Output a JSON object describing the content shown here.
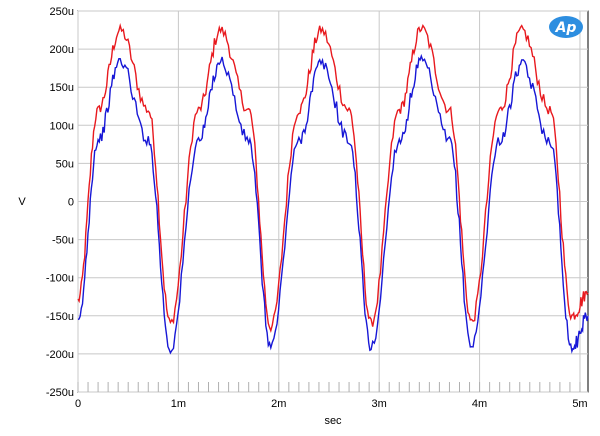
{
  "chart_data": {
    "type": "line",
    "title": "",
    "xlabel": "sec",
    "ylabel": "V",
    "xlim": [
      0,
      0.00508
    ],
    "ylim": [
      -0.00025,
      0.00025
    ],
    "grid": true,
    "x_ticks": [
      {
        "value": 0,
        "label": "0"
      },
      {
        "value": 0.001,
        "label": "1m"
      },
      {
        "value": 0.002,
        "label": "2m"
      },
      {
        "value": 0.003,
        "label": "3m"
      },
      {
        "value": 0.004,
        "label": "4m"
      },
      {
        "value": 0.005,
        "label": "5m"
      }
    ],
    "y_ticks": [
      {
        "value": 0.00025,
        "label": "250u"
      },
      {
        "value": 0.0002,
        "label": "200u"
      },
      {
        "value": 0.00015,
        "label": "150u"
      },
      {
        "value": 0.0001,
        "label": "100u"
      },
      {
        "value": 5e-05,
        "label": "50u"
      },
      {
        "value": 0,
        "label": "0"
      },
      {
        "value": -5e-05,
        "label": "-50u"
      },
      {
        "value": -0.0001,
        "label": "-100u"
      },
      {
        "value": -0.00015,
        "label": "-150u"
      },
      {
        "value": -0.0002,
        "label": "-200u"
      },
      {
        "value": -0.00025,
        "label": "-250u"
      }
    ],
    "series": [
      {
        "color": "#e8191e",
        "x": [
          0,
          0.0002,
          0.00042,
          0.0007,
          0.00092,
          0.0012,
          0.00142,
          0.0017,
          0.00192,
          0.0022,
          0.00242,
          0.0027,
          0.00292,
          0.0032,
          0.00342,
          0.0037,
          0.00392,
          0.0042,
          0.00442,
          0.0047,
          0.00492,
          0.00508
        ],
        "y": [
          -0.00013,
          0.00012,
          0.000225,
          0.00012,
          -0.00016,
          0.00012,
          0.000225,
          0.00012,
          -0.000165,
          0.00012,
          0.000225,
          0.00012,
          -0.00016,
          0.00012,
          0.000227,
          0.00012,
          -0.000158,
          0.00012,
          0.000225,
          0.00012,
          -0.00015,
          -0.00012
        ]
      },
      {
        "color": "#1717d6",
        "x": [
          0,
          0.0002,
          0.00042,
          0.0007,
          0.00092,
          0.0012,
          0.00142,
          0.0017,
          0.00192,
          0.0022,
          0.00242,
          0.0027,
          0.00292,
          0.0032,
          0.00342,
          0.0037,
          0.00392,
          0.0042,
          0.00442,
          0.0047,
          0.00492,
          0.00508
        ],
        "y": [
          -0.00016,
          8e-05,
          0.000185,
          8e-05,
          -0.000195,
          8e-05,
          0.000185,
          8e-05,
          -0.00019,
          8e-05,
          0.000182,
          8e-05,
          -0.000192,
          8e-05,
          0.000185,
          8e-05,
          -0.00019,
          8e-05,
          0.00018,
          8e-05,
          -0.000193,
          -0.00015
        ]
      }
    ]
  },
  "logo": {
    "text": "Ap",
    "color": "#2d8ee0"
  }
}
